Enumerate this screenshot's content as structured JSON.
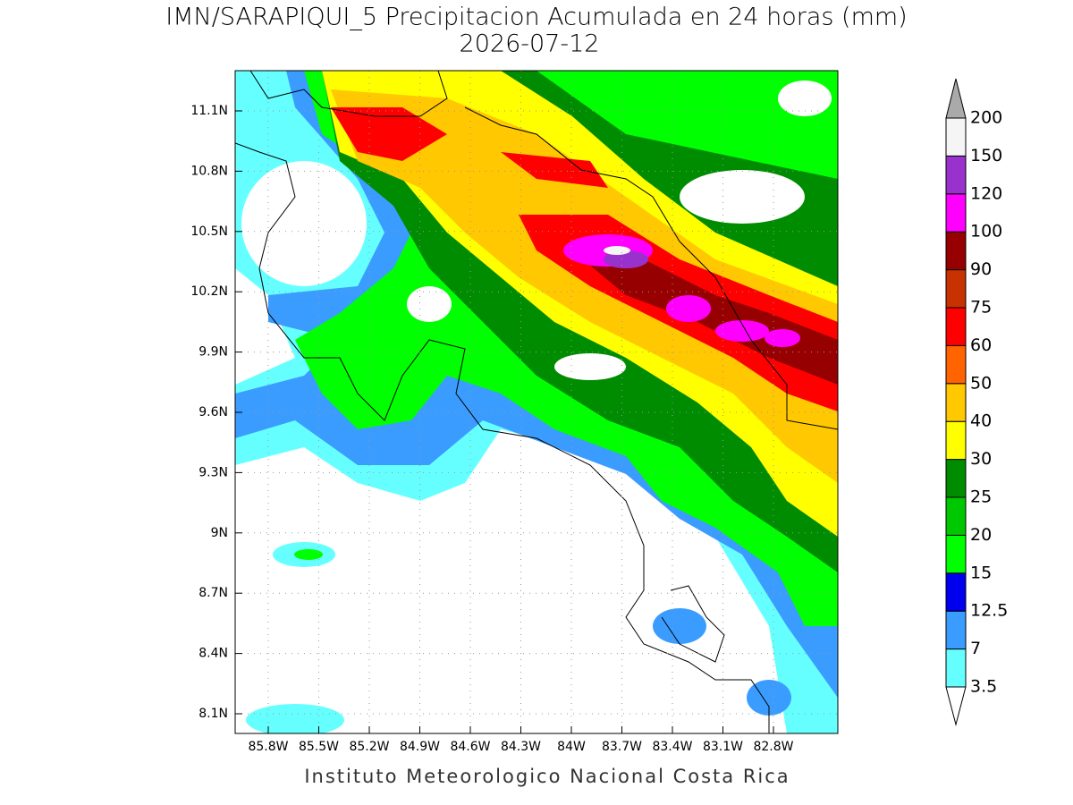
{
  "map": {
    "title": "IMN/SARAPIQUI_5 Precipitacion Acumulada en 24 horas (mm)",
    "subtitle": "2026-07-12",
    "lat_labels": [
      "11.1N",
      "10.8N",
      "10.5N",
      "10.2N",
      "9.9N",
      "9.6N",
      "9.3N",
      "9N",
      "8.7N",
      "8.4N",
      "8.1N"
    ],
    "lon_labels": [
      "85.8W",
      "85.5W",
      "85.2W",
      "84.9W",
      "84.6W",
      "84.3W",
      "84W",
      "83.7W",
      "83.4W",
      "83.1W",
      "82.8W"
    ],
    "footer": "Instituto Meteorologico Nacional Costa Rica"
  },
  "colorbar": {
    "labels": [
      "3.5",
      "7",
      "12.5",
      "15",
      "20",
      "25",
      "30",
      "40",
      "50",
      "60",
      "75",
      "90",
      "100",
      "120",
      "150",
      "200"
    ],
    "colors": [
      "#66ffff",
      "#3b9cff",
      "#0000ee",
      "#00ff00",
      "#00c800",
      "#008c00",
      "#ffff00",
      "#ffc800",
      "#ff6400",
      "#ff0000",
      "#c83200",
      "#960000",
      "#ff00ff",
      "#9932cc",
      "#f5f5f5"
    ],
    "under_color": "#ffffff",
    "over_color": "#aaaaaa"
  }
}
